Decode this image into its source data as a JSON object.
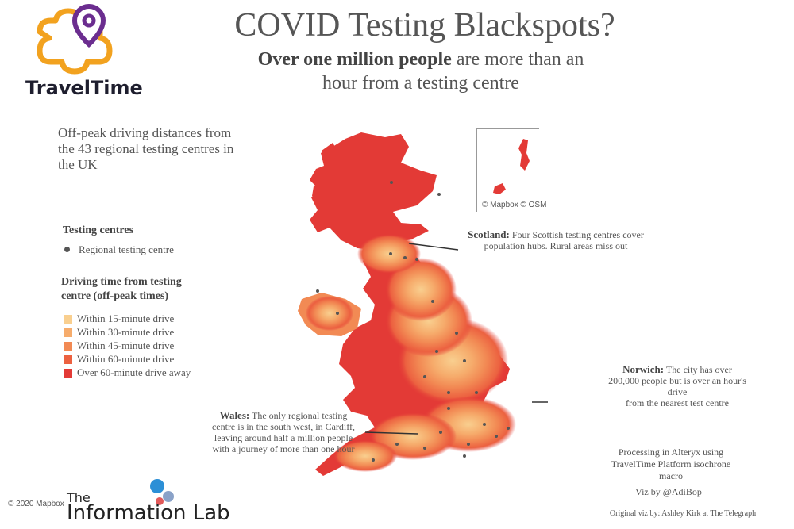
{
  "header": {
    "title": "COVID Testing Blackspots?",
    "subtitle_bold": "Over one million people",
    "subtitle_rest": "are more than an",
    "subtitle_line2": "hour from a testing centre"
  },
  "logo": {
    "name": "TravelTime",
    "primary_color": "#f2a21f",
    "pin_color": "#6b2d8f"
  },
  "description": "Off-peak driving distances from the 43 regional testing centres in the UK",
  "legend": {
    "centres_title": "Testing centres",
    "centre_item": "Regional testing centre",
    "drive_title_l1": "Driving time from testing",
    "drive_title_l2": "centre (off-peak times)",
    "items": [
      {
        "label": "Within 15-minute drive",
        "color": "#f9cf8f"
      },
      {
        "label": "Within 30-minute drive",
        "color": "#f6ac6c"
      },
      {
        "label": "Within 45-minute drive",
        "color": "#f28a54"
      },
      {
        "label": "Within 60-minute drive",
        "color": "#ec6140"
      },
      {
        "label": "Over 60-minute drive away",
        "color": "#e33a36"
      }
    ]
  },
  "map": {
    "inset_attribution": "© Mapbox © OSM",
    "attribution": "© 2020 Mapbox"
  },
  "annotations": {
    "scotland": {
      "bold": "Scotland:",
      "l1": "Four Scottish testing centres cover",
      "l2": "population hubs. Rural areas miss out"
    },
    "norwich": {
      "bold": "Norwich:",
      "l1": "The city has over",
      "l2": "200,000 people but is over an hour's",
      "l3": "drive",
      "l4": "from the nearest test centre"
    },
    "wales": {
      "bold": "Wales:",
      "l1": "The only regional testing",
      "l2": "centre is in the south west, in Cardiff,",
      "l3": "leaving around  half a million people",
      "l4": "with a journey of more than one hour"
    }
  },
  "credits": {
    "processing_l1": "Processing in Alteryx using",
    "processing_l2": "TravelTime Platform isochrone",
    "processing_l3": "macro",
    "viz_by": "Viz by @AdiBop_",
    "original": "Original viz by: Ashley Kirk at The Telegraph",
    "brand_small": "The",
    "brand_big": "Information Lab"
  }
}
